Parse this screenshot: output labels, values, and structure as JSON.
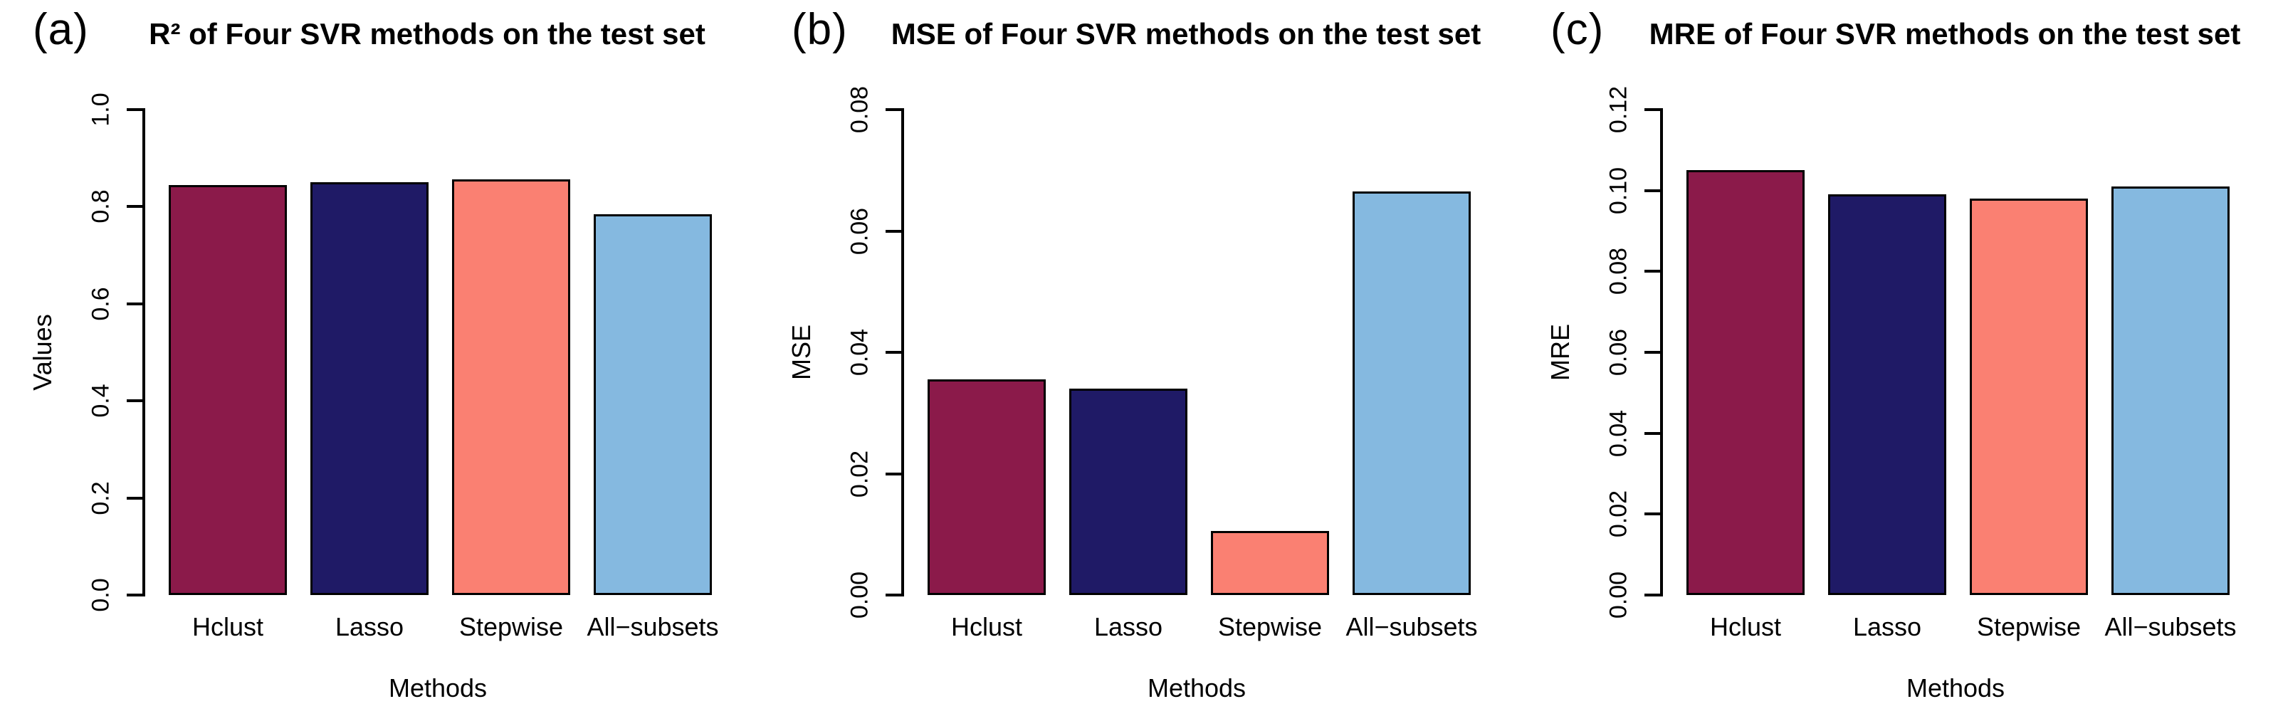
{
  "figure": {
    "background": "#ffffff",
    "axis_color": "#000000",
    "text_color": "#000000"
  },
  "chart_data": [
    {
      "type": "bar",
      "panel_label": "(a)",
      "title": "R² of Four SVR methods on the test set",
      "xlabel": "Methods",
      "ylabel": "Values",
      "categories": [
        "Hclust",
        "Lasso",
        "Stepwise",
        "All−subsets"
      ],
      "values": [
        0.845,
        0.85,
        0.857,
        0.785
      ],
      "ylim": [
        0,
        1.0
      ],
      "ytick_labels": [
        "0.0",
        "0.2",
        "0.4",
        "0.6",
        "0.8",
        "1.0"
      ],
      "bar_colors": [
        "#8B1A4A",
        "#1F1A66",
        "#FA8072",
        "#85B9E0"
      ],
      "grid": false,
      "legend": null
    },
    {
      "type": "bar",
      "panel_label": "(b)",
      "title": "MSE of Four SVR methods on the test set",
      "xlabel": "Methods",
      "ylabel": "MSE",
      "categories": [
        "Hclust",
        "Lasso",
        "Stepwise",
        "All−subsets"
      ],
      "values": [
        0.0355,
        0.034,
        0.0105,
        0.0665
      ],
      "ylim": [
        0,
        0.08
      ],
      "ytick_labels": [
        "0.00",
        "0.02",
        "0.04",
        "0.06",
        "0.08"
      ],
      "bar_colors": [
        "#8B1A4A",
        "#1F1A66",
        "#FA8072",
        "#85B9E0"
      ],
      "grid": false,
      "legend": null
    },
    {
      "type": "bar",
      "panel_label": "(c)",
      "title": "MRE of Four SVR methods on the test set",
      "xlabel": "Methods",
      "ylabel": "MRE",
      "categories": [
        "Hclust",
        "Lasso",
        "Stepwise",
        "All−subsets"
      ],
      "values": [
        0.105,
        0.099,
        0.098,
        0.101
      ],
      "ylim": [
        0,
        0.12
      ],
      "ytick_labels": [
        "0.00",
        "0.02",
        "0.04",
        "0.06",
        "0.08",
        "0.10",
        "0.12"
      ],
      "bar_colors": [
        "#8B1A4A",
        "#1F1A66",
        "#FA8072",
        "#85B9E0"
      ],
      "grid": false,
      "legend": null
    }
  ]
}
